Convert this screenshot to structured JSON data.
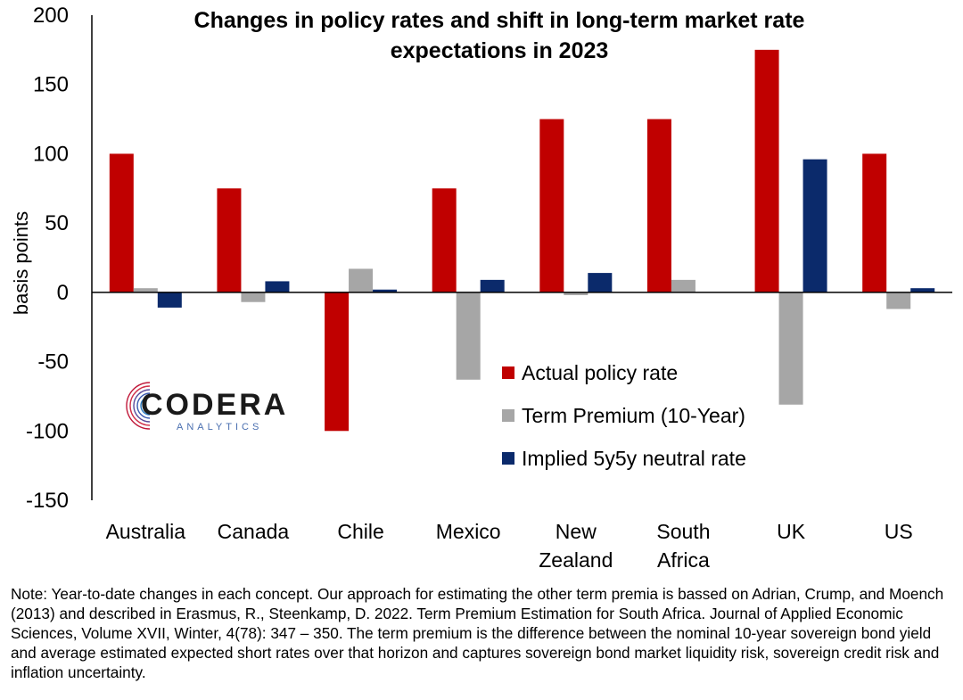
{
  "chart_data": {
    "type": "bar",
    "title": "Changes in policy rates and shift in long-term market rate expectations in 2023",
    "ylabel": "basis points",
    "xlabel": "",
    "ylim": [
      -150,
      200
    ],
    "yticks": [
      200,
      150,
      100,
      50,
      0,
      -50,
      -100,
      -150
    ],
    "categories": [
      "Australia",
      "Canada",
      "Chile",
      "Mexico",
      "New Zealand",
      "South Africa",
      "UK",
      "US"
    ],
    "series": [
      {
        "name": "Actual policy rate",
        "color": "#c00000",
        "values": [
          100,
          75,
          -100,
          75,
          125,
          125,
          175,
          100
        ]
      },
      {
        "name": "Term Premium (10-Year)",
        "color": "#a6a6a6",
        "values": [
          3,
          -7,
          17,
          -63,
          -2,
          9,
          -81,
          -12
        ]
      },
      {
        "name": "Implied 5y5y neutral rate",
        "color": "#0b2a6b",
        "values": [
          -11,
          8,
          2,
          9,
          14,
          0,
          96,
          3
        ]
      }
    ],
    "legend_position": "bottom-right",
    "grid": false
  },
  "logo": {
    "name": "CODERA",
    "sub": "ANALYTICS"
  },
  "note": "Note: Year-to-date changes in each concept. Our approach for estimating the other term premia is bassed on Adrian, Crump, and Moench (2013) and described in Erasmus, R., Steenkamp, D. 2022. Term Premium Estimation for South Africa. Journal of Applied Economic Sciences, Volume XVII, Winter, 4(78): 347 – 350. The term premium is the difference between the nominal 10-year sovereign bond yield and average estimated expected short rates over that horizon and captures sovereign bond market liquidity risk, sovereign credit risk and inflation uncertainty."
}
